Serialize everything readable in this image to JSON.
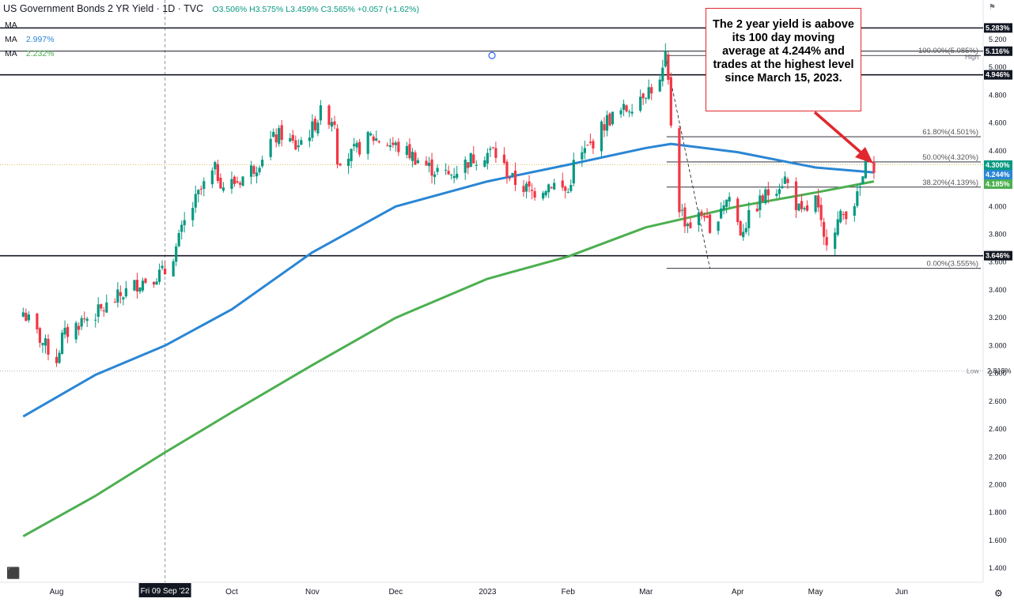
{
  "header": {
    "title": "US Government Bonds 2 YR Yield · 1D · TVC",
    "ohlc": "O3.506% H3.575% L3.459% C3.565% +0.057 (+1.62%)"
  },
  "ma_legend": [
    {
      "label": "MA",
      "value": "",
      "color": "#131722"
    },
    {
      "label": "MA",
      "value": "2.997%",
      "color": "#2a86d4"
    },
    {
      "label": "MA",
      "value": "2.232%",
      "color": "#4caf50"
    }
  ],
  "callout": {
    "text": "The 2 year yield is aabove its 100 day moving average at 4.244% and trades at the highest level since March 15, 2023.",
    "border_color": "#e0282e"
  },
  "colors": {
    "up": "#089981",
    "down": "#f23645",
    "ma100": "#2a86d4",
    "ma200": "#4caf50",
    "arrow": "#e0282e"
  },
  "chart_data": {
    "type": "candlestick",
    "title": "US Government Bonds 2 YR Yield · 1D · TVC",
    "y_unit": "%",
    "ylim": [
      1.3,
      5.45
    ],
    "y_ticks": [
      "1.400",
      "1.600",
      "1.800",
      "2.000",
      "2.200",
      "2.400",
      "2.600",
      "2.800",
      "3.000",
      "3.200",
      "3.400",
      "3.600",
      "3.800",
      "4.000",
      "4.200",
      "4.400",
      "4.600",
      "4.800",
      "5.000",
      "5.200"
    ],
    "x_labels": [
      {
        "label": "Aug",
        "date": "2022-08-01"
      },
      {
        "label": "Fri 09 Sep '22",
        "date": "2022-09-09"
      },
      {
        "label": "Oct",
        "date": "2022-10-03"
      },
      {
        "label": "Nov",
        "date": "2022-11-01"
      },
      {
        "label": "Dec",
        "date": "2022-12-01"
      },
      {
        "label": "2023",
        "date": "2023-01-03"
      },
      {
        "label": "Feb",
        "date": "2023-02-01"
      },
      {
        "label": "Mar",
        "date": "2023-03-01"
      },
      {
        "label": "Apr",
        "date": "2023-04-03"
      },
      {
        "label": "May",
        "date": "2023-05-01"
      },
      {
        "label": "Jun",
        "date": "2023-06-01"
      }
    ],
    "x_start_date": "2022-07-20",
    "x_end_date": "2023-06-30",
    "close_path": [
      [
        "2022-07-20",
        3.24
      ],
      [
        "2022-07-27",
        3.02
      ],
      [
        "2022-08-01",
        2.9
      ],
      [
        "2022-08-03",
        3.06
      ],
      [
        "2022-08-10",
        3.18
      ],
      [
        "2022-08-17",
        3.25
      ],
      [
        "2022-08-24",
        3.36
      ],
      [
        "2022-08-31",
        3.46
      ],
      [
        "2022-09-09",
        3.53
      ],
      [
        "2022-09-13",
        3.7
      ],
      [
        "2022-09-16",
        3.88
      ],
      [
        "2022-09-22",
        4.12
      ],
      [
        "2022-09-27",
        4.26
      ],
      [
        "2022-09-30",
        4.15
      ],
      [
        "2022-10-05",
        4.18
      ],
      [
        "2022-10-12",
        4.3
      ],
      [
        "2022-10-17",
        4.47
      ],
      [
        "2022-10-21",
        4.52
      ],
      [
        "2022-10-26",
        4.43
      ],
      [
        "2022-11-01",
        4.56
      ],
      [
        "2022-11-04",
        4.67
      ],
      [
        "2022-11-09",
        4.62
      ],
      [
        "2022-11-10",
        4.35
      ],
      [
        "2022-11-15",
        4.37
      ],
      [
        "2022-11-22",
        4.5
      ],
      [
        "2022-11-29",
        4.45
      ],
      [
        "2022-12-06",
        4.38
      ],
      [
        "2022-12-13",
        4.28
      ],
      [
        "2022-12-20",
        4.22
      ],
      [
        "2022-12-28",
        4.34
      ],
      [
        "2023-01-05",
        4.4
      ],
      [
        "2023-01-12",
        4.19
      ],
      [
        "2023-01-19",
        4.1
      ],
      [
        "2023-01-26",
        4.17
      ],
      [
        "2023-02-01",
        4.1
      ],
      [
        "2023-02-03",
        4.3
      ],
      [
        "2023-02-09",
        4.44
      ],
      [
        "2023-02-15",
        4.62
      ],
      [
        "2023-02-22",
        4.7
      ],
      [
        "2023-02-28",
        4.82
      ],
      [
        "2023-03-06",
        4.88
      ],
      [
        "2023-03-08",
        5.06
      ],
      [
        "2023-03-09",
        4.88
      ],
      [
        "2023-03-10",
        4.6
      ],
      [
        "2023-03-13",
        4.0
      ],
      [
        "2023-03-15",
        3.9
      ],
      [
        "2023-03-17",
        3.87
      ],
      [
        "2023-03-22",
        3.96
      ],
      [
        "2023-03-24",
        3.77
      ],
      [
        "2023-03-28",
        4.01
      ],
      [
        "2023-03-31",
        4.07
      ],
      [
        "2023-04-04",
        3.82
      ],
      [
        "2023-04-10",
        4.01
      ],
      [
        "2023-04-14",
        4.1
      ],
      [
        "2023-04-20",
        4.2
      ],
      [
        "2023-04-26",
        3.93
      ],
      [
        "2023-05-01",
        4.05
      ],
      [
        "2023-05-04",
        3.75
      ],
      [
        "2023-05-10",
        3.92
      ],
      [
        "2023-05-16",
        4.06
      ],
      [
        "2023-05-19",
        4.28
      ],
      [
        "2023-05-22",
        4.3
      ]
    ],
    "series": [
      {
        "name": "MA",
        "values": [
          [
            "2022-07-20",
            2.49
          ],
          [
            "2022-08-15",
            2.79
          ],
          [
            "2022-09-09",
            3.0
          ],
          [
            "2022-10-03",
            3.26
          ],
          [
            "2022-11-01",
            3.67
          ],
          [
            "2022-12-01",
            4.0
          ],
          [
            "2023-01-03",
            4.18
          ],
          [
            "2023-02-01",
            4.3
          ],
          [
            "2023-03-01",
            4.42
          ],
          [
            "2023-03-10",
            4.45
          ],
          [
            "2023-04-03",
            4.39
          ],
          [
            "2023-05-01",
            4.28
          ],
          [
            "2023-05-22",
            4.244
          ]
        ]
      },
      {
        "name": "MA",
        "values": [
          [
            "2022-07-20",
            1.63
          ],
          [
            "2022-08-15",
            1.92
          ],
          [
            "2022-09-09",
            2.232
          ],
          [
            "2022-10-03",
            2.52
          ],
          [
            "2022-11-01",
            2.86
          ],
          [
            "2022-12-01",
            3.2
          ],
          [
            "2023-01-03",
            3.48
          ],
          [
            "2023-02-01",
            3.64
          ],
          [
            "2023-03-01",
            3.85
          ],
          [
            "2023-04-03",
            4.0
          ],
          [
            "2023-05-01",
            4.1
          ],
          [
            "2023-05-22",
            4.18
          ]
        ]
      }
    ],
    "horizontal_lines": [
      {
        "value": 5.283,
        "label": "5.283%"
      },
      {
        "value": 5.116,
        "label": "5.116%"
      },
      {
        "value": 4.946,
        "label": "4.946%"
      },
      {
        "value": 3.646,
        "label": "3.646%"
      }
    ],
    "fibonacci": [
      {
        "label": "100.00%(5.085%)",
        "value": 5.085
      },
      {
        "label": "61.80%(4.501%)",
        "value": 4.501
      },
      {
        "label": "50.00%(4.320%)",
        "value": 4.32
      },
      {
        "label": "38.20%(4.139%)",
        "value": 4.139
      },
      {
        "label": "0.00%(3.555%)",
        "value": 3.555
      }
    ],
    "price_badges": [
      {
        "value": 4.3,
        "label": "4.300%",
        "color": "#089981"
      },
      {
        "value": 4.244,
        "label": "4.244%",
        "color": "#2a86d4"
      },
      {
        "value": 4.185,
        "label": "4.185%",
        "color": "#4caf50"
      }
    ],
    "high_marker": {
      "label": "High",
      "value": 5.116
    },
    "low_marker": {
      "label": "Low",
      "value": 2.818,
      "text": "2.818%"
    }
  }
}
